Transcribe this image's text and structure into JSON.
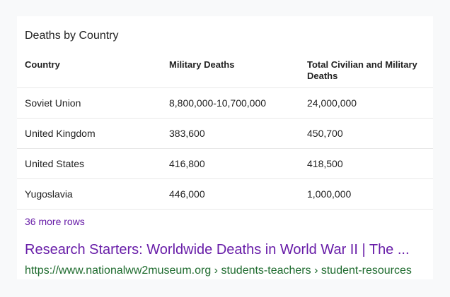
{
  "card": {
    "heading": "Deaths by Country"
  },
  "table": {
    "columns": [
      "Country",
      "Military Deaths",
      "Total Civilian and Military Deaths"
    ],
    "rows": [
      [
        "Soviet Union",
        "8,800,000-10,700,000",
        "24,000,000"
      ],
      [
        "United Kingdom",
        "383,600",
        "450,700"
      ],
      [
        "United States",
        "416,800",
        "418,500"
      ],
      [
        "Yugoslavia",
        "446,000",
        "1,000,000"
      ]
    ],
    "more_rows_label": "36 more rows"
  },
  "result": {
    "title": "Research Starters: Worldwide Deaths in World War II | The ...",
    "url": "https://www.nationalww2museum.org › students-teachers › student-resources"
  },
  "colors": {
    "link_visited": "#681da8",
    "url_green": "#1e6b2e",
    "text": "#222222"
  }
}
